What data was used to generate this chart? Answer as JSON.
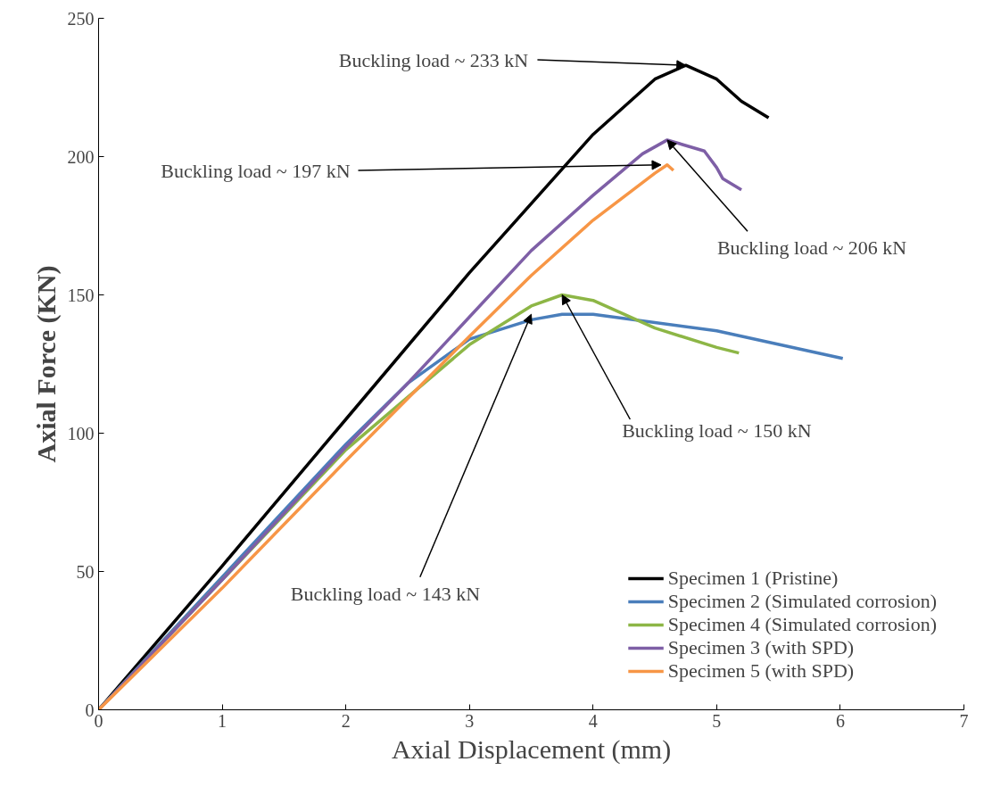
{
  "chart_data": {
    "type": "line",
    "xlabel": "Axial Displacement (mm)",
    "ylabel": "Axial Force (KN)",
    "xlim": [
      0,
      7
    ],
    "ylim": [
      0,
      250
    ],
    "xticks": [
      0,
      1,
      2,
      3,
      4,
      5,
      6,
      7
    ],
    "yticks": [
      0,
      50,
      100,
      150,
      200,
      250
    ],
    "grid": false,
    "legend": "bottom right",
    "marker": "none",
    "line_style": "solid",
    "series": [
      {
        "name": "Specimen 1 (Pristine)",
        "color": "#000000",
        "x": [
          0,
          1,
          2,
          3,
          4,
          4.5,
          4.75,
          5.0,
          5.2,
          5.42
        ],
        "values": [
          0,
          52,
          105,
          158,
          208,
          228,
          233,
          228,
          220,
          214
        ]
      },
      {
        "name": "Specimen 2 (Simulated corrosion)",
        "color": "#4a7ebb",
        "x": [
          0,
          1,
          2,
          2.5,
          3,
          3.5,
          3.75,
          4,
          5,
          6.02
        ],
        "values": [
          0,
          48,
          96,
          118,
          134,
          141,
          143,
          143,
          137,
          127
        ]
      },
      {
        "name": "Specimen 4 (Simulated corrosion)",
        "color": "#8db646",
        "x": [
          0,
          1,
          2,
          3,
          3.5,
          3.75,
          4,
          4.5,
          5,
          5.18
        ],
        "values": [
          0,
          47,
          94,
          132,
          146,
          150,
          148,
          138,
          131,
          129
        ]
      },
      {
        "name": "Specimen 3 (with SPD)",
        "color": "#7e5fa6",
        "x": [
          0,
          1,
          2,
          2.5,
          3,
          3.5,
          4,
          4.4,
          4.6,
          4.9,
          5.0,
          5.05,
          5.2
        ],
        "values": [
          0,
          47,
          95,
          118,
          142,
          166,
          186,
          201,
          206,
          202,
          196,
          192,
          188
        ]
      },
      {
        "name": "Specimen 5 (with SPD)",
        "color": "#f79646",
        "x": [
          0,
          1,
          2,
          3,
          3.5,
          4,
          4.5,
          4.6,
          4.65
        ],
        "values": [
          0,
          44,
          90,
          135,
          157,
          177,
          194,
          197,
          195
        ]
      }
    ],
    "annotations": [
      {
        "text": "Buckling load ~ 233 kN",
        "x": 4.75,
        "y": 233
      },
      {
        "text": "Buckling load ~ 197 kN",
        "x": 4.55,
        "y": 197
      },
      {
        "text": "Buckling load ~ 206 kN",
        "x": 4.6,
        "y": 206
      },
      {
        "text": "Buckling load ~ 150 kN",
        "x": 3.75,
        "y": 150
      },
      {
        "text": "Buckling load ~ 143 kN",
        "x": 3.5,
        "y": 143
      }
    ]
  }
}
